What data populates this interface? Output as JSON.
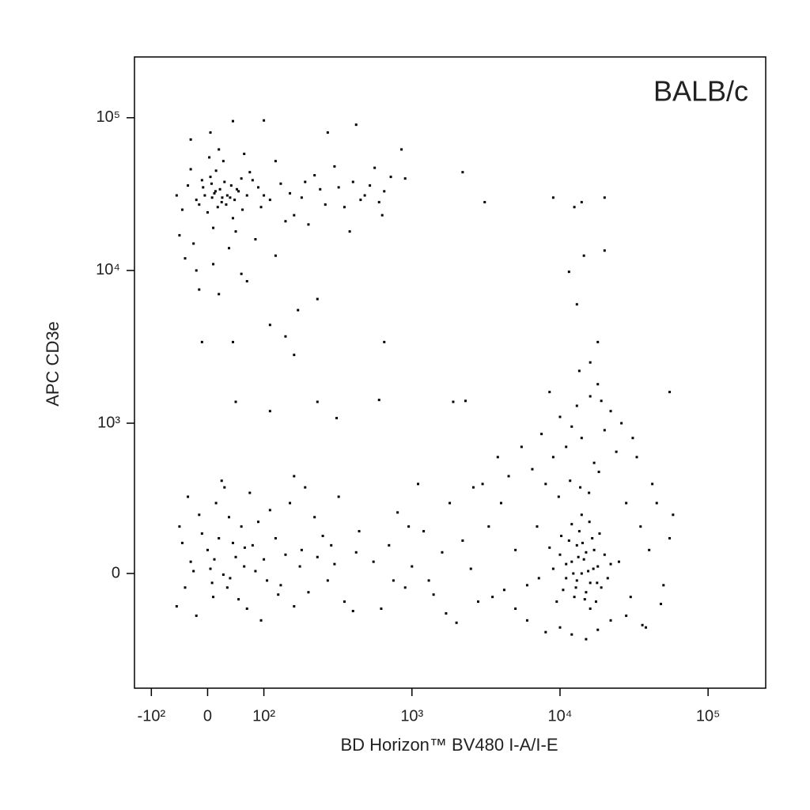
{
  "chart_data": {
    "type": "scatter",
    "annotation": "BALB/c",
    "x_label": "BD Horizon™ BV480 I-A/I-E",
    "y_label": "APC CD3e",
    "color": "#000000",
    "xscale": "biexponential",
    "yscale": "biexponential",
    "xlim": [
      -130,
      245000
    ],
    "ylim": [
      -585,
      250000
    ],
    "xticks": [
      {
        "value": -100,
        "label": "-10²"
      },
      0,
      {
        "value": 100,
        "label": "10²"
      },
      {
        "value": 1000,
        "label": "10³"
      },
      {
        "value": 10000,
        "label": "10⁴"
      },
      {
        "value": 100000,
        "label": "10⁵"
      }
    ],
    "yticks": [
      0,
      {
        "value": 1000,
        "label": "10³"
      },
      {
        "value": 10000,
        "label": "10⁴"
      },
      {
        "value": 100000,
        "label": "10⁵"
      }
    ],
    "x": [
      12,
      25,
      -8,
      40,
      5,
      18,
      55,
      -20,
      30,
      70,
      0,
      15,
      -35,
      45,
      60,
      8,
      22,
      -15,
      35,
      90,
      110,
      130,
      150,
      -45,
      -55,
      28,
      10,
      50,
      75,
      95,
      180,
      220,
      260,
      320,
      400,
      480,
      560,
      650,
      720,
      -30,
      3,
      20,
      65,
      120,
      160,
      200,
      -50,
      -25,
      38,
      85,
      140,
      190,
      240,
      300,
      350,
      450,
      520,
      600,
      -10,
      14,
      26,
      33,
      42,
      48,
      -5,
      7,
      52,
      62,
      80,
      100,
      -40,
      -20,
      10,
      60,
      120,
      20,
      -15,
      70,
      230,
      170,
      -30,
      5,
      45,
      100,
      270,
      420,
      850,
      900,
      630,
      380,
      2200,
      3100,
      9000,
      12500,
      14000,
      20000,
      20000,
      11500,
      13000,
      14500,
      110,
      140,
      160,
      45,
      -10,
      650,
      600,
      230,
      310,
      50,
      110,
      1900,
      2300,
      18000,
      16000,
      13500,
      0,
      20,
      -30,
      40,
      60,
      10,
      -15,
      80,
      100,
      130,
      150,
      180,
      -45,
      30,
      70,
      -20,
      5,
      50,
      90,
      120,
      200,
      250,
      300,
      350,
      420,
      -40,
      15,
      35,
      65,
      110,
      140,
      160,
      220,
      270,
      -50,
      -55,
      25,
      75,
      45,
      8,
      190,
      -10,
      55,
      85,
      230,
      95,
      400,
      440,
      320,
      160,
      -35,
      12,
      28,
      66,
      105,
      175,
      285,
      -25,
      38,
      125,
      550,
      620,
      700,
      800,
      900,
      1000,
      1200,
      1400,
      1600,
      1800,
      2000,
      2200,
      2500,
      2800,
      1100,
      1300,
      750,
      950,
      1700,
      2600,
      12000,
      14000,
      16000,
      10000,
      13000,
      15000,
      18000,
      11000,
      17000,
      14500,
      12500,
      16500,
      9000,
      19000,
      13500,
      15500,
      11500,
      20000,
      10500,
      17500,
      12000,
      14000,
      16000,
      22000,
      8500,
      13000,
      15000,
      18500,
      11000,
      12800,
      14200,
      16800,
      9500,
      21000,
      13300,
      15800,
      10200,
      17800,
      12300,
      14700,
      7000,
      6000,
      5000,
      4000,
      3500,
      8000,
      25000,
      30000,
      35000,
      28000,
      6500,
      9000,
      11000,
      14000,
      17000,
      20000,
      24000,
      7500,
      10000,
      13000,
      16000,
      18000,
      12000,
      22000,
      8500,
      5500,
      4500,
      3800,
      26000,
      19000,
      6000,
      8000,
      10000,
      12000,
      15000,
      18000,
      22000,
      28000,
      36000,
      38000,
      40000,
      45000,
      50000,
      55000,
      58000,
      48000,
      42000,
      33000,
      31000,
      55000,
      5000,
      4200,
      3300,
      3000,
      7200,
      9800,
      11700,
      13700,
      15700,
      18300
    ],
    "values": [
      32000,
      28000,
      35000,
      30000,
      41000,
      26000,
      33000,
      29000,
      38000,
      31000,
      24000,
      45000,
      36000,
      22000,
      40000,
      30000,
      34000,
      27000,
      31000,
      35000,
      29000,
      37000,
      32000,
      25000,
      31000,
      52000,
      19000,
      18000,
      44000,
      26000,
      30000,
      42000,
      27000,
      35000,
      38000,
      31000,
      47000,
      33000,
      41000,
      46000,
      55000,
      62000,
      58000,
      52000,
      23000,
      20000,
      17000,
      15000,
      14000,
      16000,
      21000,
      38000,
      34000,
      48000,
      26000,
      29000,
      36000,
      28000,
      39000,
      33000,
      30000,
      27000,
      36000,
      29000,
      31000,
      37000,
      34000,
      25000,
      39000,
      31000,
      12000,
      10000,
      11000,
      9500,
      12500,
      7000,
      7500,
      8500,
      6500,
      5500,
      72000,
      80000,
      95000,
      96000,
      80000,
      90000,
      62000,
      40000,
      23000,
      18000,
      44000,
      28000,
      30000,
      26000,
      28000,
      30000,
      13500,
      9800,
      6000,
      12500,
      4400,
      3700,
      2800,
      3400,
      3400,
      3400,
      1420,
      1380,
      1080,
      1380,
      1200,
      1380,
      1400,
      3400,
      2500,
      2200,
      100,
      150,
      50,
      -20,
      200,
      -100,
      250,
      120,
      60,
      -50,
      300,
      100,
      130,
      380,
      -150,
      -180,
      20,
      70,
      220,
      150,
      -80,
      160,
      40,
      -120,
      90,
      -60,
      300,
      -60,
      30,
      270,
      80,
      -140,
      240,
      -30,
      200,
      -140,
      420,
      350,
      130,
      -40,
      380,
      170,
      -110,
      10,
      70,
      -200,
      -160,
      180,
      330,
      450,
      330,
      60,
      -5,
      110,
      -30,
      30,
      120,
      10,
      240,
      -90,
      50,
      -150,
      120,
      260,
      -60,
      30,
      180,
      -90,
      90,
      300,
      -210,
      140,
      20,
      -120,
      400,
      -30,
      -30,
      200,
      -170,
      380,
      50,
      0,
      -40,
      80,
      120,
      -80,
      30,
      -20,
      100,
      60,
      -100,
      150,
      20,
      -60,
      180,
      10,
      140,
      80,
      -70,
      -120,
      210,
      250,
      -150,
      40,
      110,
      -30,
      90,
      170,
      40,
      -60,
      130,
      20,
      -120,
      -20,
      70,
      220,
      160,
      -40,
      0,
      -110,
      200,
      -50,
      100,
      300,
      -100,
      400,
      50,
      -100,
      200,
      300,
      500,
      600,
      700,
      800,
      550,
      900,
      650,
      850,
      1100,
      1300,
      1500,
      1800,
      950,
      1200,
      1600,
      700,
      450,
      600,
      1000,
      1400,
      -200,
      -250,
      -230,
      -260,
      -280,
      -240,
      -200,
      -180,
      -220,
      -230,
      100,
      300,
      -50,
      150,
      250,
      -130,
      400,
      600,
      800,
      1600,
      -150,
      -70,
      200,
      400,
      -20,
      330,
      420,
      380,
      350,
      480
    ]
  }
}
